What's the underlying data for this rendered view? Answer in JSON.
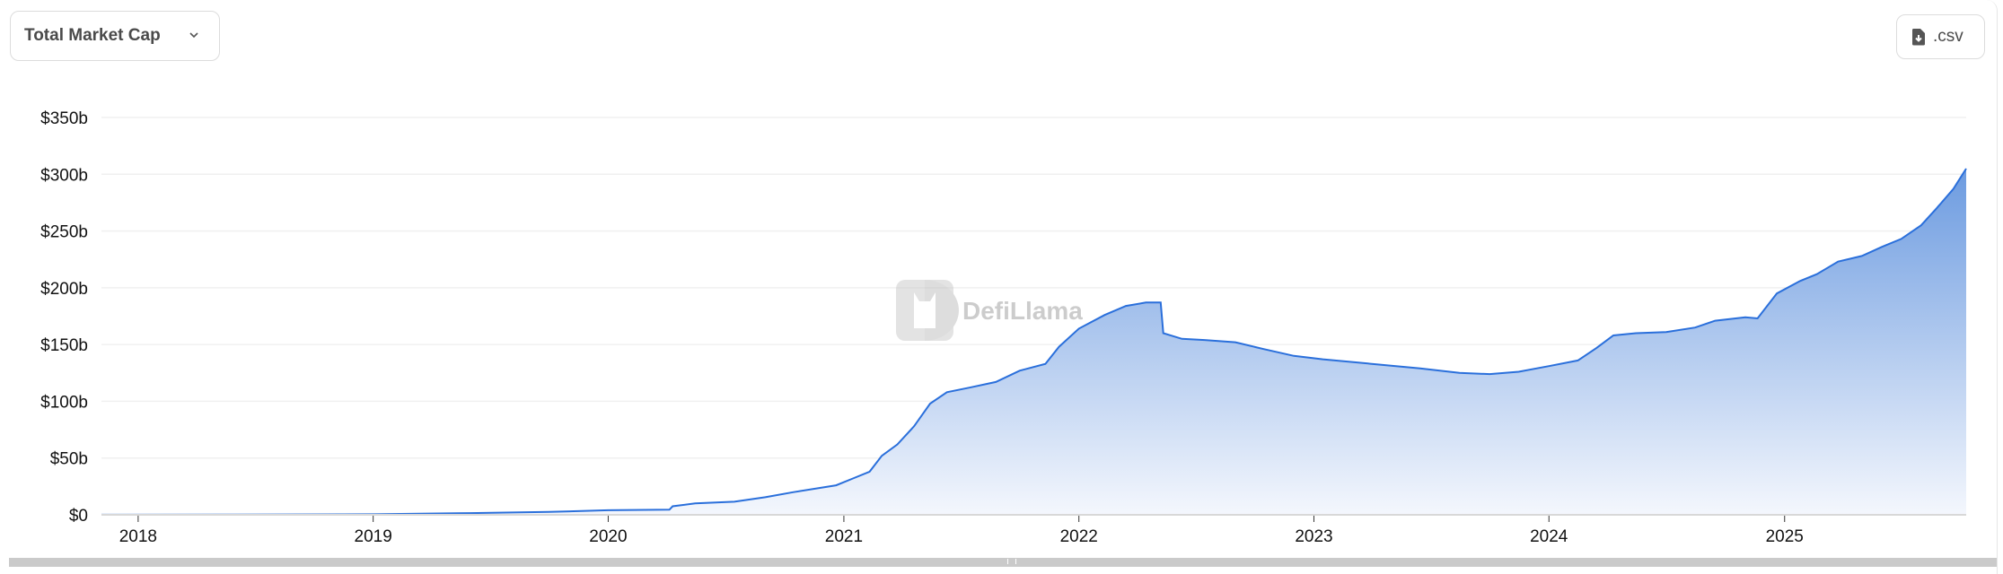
{
  "header": {
    "metric_selector_label": "Total Market Cap",
    "csv_button_label": ".csv"
  },
  "watermark": {
    "text": "DefiLlama"
  },
  "colors": {
    "line": "#2a6fdb",
    "fill_top": "#6c9be0",
    "fill_bottom": "#f4f7fd",
    "grid": "#f0f0f0"
  },
  "chart_data": {
    "type": "area",
    "title": "",
    "xlabel": "",
    "ylabel": "",
    "ylim": [
      0,
      350
    ],
    "xlim": [
      "2017-11-05",
      "2025-10-10"
    ],
    "yticks": [
      0,
      50,
      100,
      150,
      200,
      250,
      300,
      350
    ],
    "ytick_labels": [
      "$0",
      "$50b",
      "$100b",
      "$150b",
      "$200b",
      "$250b",
      "$300b",
      "$350b"
    ],
    "xticks": [
      "2018-01-01",
      "2019-01-01",
      "2020-01-01",
      "2021-01-01",
      "2022-01-01",
      "2023-01-01",
      "2024-01-01",
      "2025-01-01"
    ],
    "xtick_labels": [
      "2018",
      "2019",
      "2020",
      "2021",
      "2022",
      "2023",
      "2024",
      "2025"
    ],
    "grid": true,
    "series": [
      {
        "unit": "billion USD",
        "points": [
          [
            "2017-11-05",
            0.1
          ],
          [
            "2018-06-01",
            0.2
          ],
          [
            "2019-01-01",
            0.5
          ],
          [
            "2019-06-01",
            1.5
          ],
          [
            "2019-10-01",
            2.5
          ],
          [
            "2020-01-01",
            4
          ],
          [
            "2020-04-05",
            4.5
          ],
          [
            "2020-04-10",
            7.5
          ],
          [
            "2020-05-15",
            10
          ],
          [
            "2020-07-15",
            11.5
          ],
          [
            "2020-09-01",
            15.5
          ],
          [
            "2020-10-15",
            20
          ],
          [
            "2020-12-20",
            26
          ],
          [
            "2021-01-15",
            32
          ],
          [
            "2021-02-10",
            38
          ],
          [
            "2021-03-01",
            52
          ],
          [
            "2021-03-25",
            62
          ],
          [
            "2021-04-20",
            78
          ],
          [
            "2021-05-15",
            98
          ],
          [
            "2021-06-10",
            108
          ],
          [
            "2021-07-15",
            112
          ],
          [
            "2021-08-25",
            117
          ],
          [
            "2021-10-01",
            127
          ],
          [
            "2021-11-10",
            133
          ],
          [
            "2021-12-01",
            148
          ],
          [
            "2022-01-01",
            164
          ],
          [
            "2022-02-10",
            176
          ],
          [
            "2022-03-15",
            184
          ],
          [
            "2022-04-15",
            187
          ],
          [
            "2022-05-08",
            187
          ],
          [
            "2022-05-12",
            160
          ],
          [
            "2022-06-10",
            155
          ],
          [
            "2022-07-15",
            154
          ],
          [
            "2022-09-01",
            152
          ],
          [
            "2022-10-15",
            146
          ],
          [
            "2022-12-01",
            140
          ],
          [
            "2023-01-15",
            137
          ],
          [
            "2023-04-01",
            133
          ],
          [
            "2023-06-15",
            129
          ],
          [
            "2023-08-15",
            125
          ],
          [
            "2023-10-01",
            124
          ],
          [
            "2023-11-15",
            126
          ],
          [
            "2024-01-01",
            131
          ],
          [
            "2024-02-15",
            136
          ],
          [
            "2024-03-15",
            147
          ],
          [
            "2024-04-10",
            158
          ],
          [
            "2024-05-15",
            160
          ],
          [
            "2024-07-01",
            161
          ],
          [
            "2024-08-15",
            165
          ],
          [
            "2024-09-15",
            171
          ],
          [
            "2024-11-01",
            174
          ],
          [
            "2024-11-20",
            173
          ],
          [
            "2024-12-20",
            195
          ],
          [
            "2025-01-25",
            206
          ],
          [
            "2025-02-20",
            212
          ],
          [
            "2025-03-25",
            223
          ],
          [
            "2025-05-01",
            228
          ],
          [
            "2025-06-01",
            236
          ],
          [
            "2025-07-01",
            243
          ],
          [
            "2025-08-01",
            255
          ],
          [
            "2025-08-25",
            270
          ],
          [
            "2025-09-20",
            287
          ],
          [
            "2025-10-10",
            305
          ]
        ]
      }
    ]
  }
}
